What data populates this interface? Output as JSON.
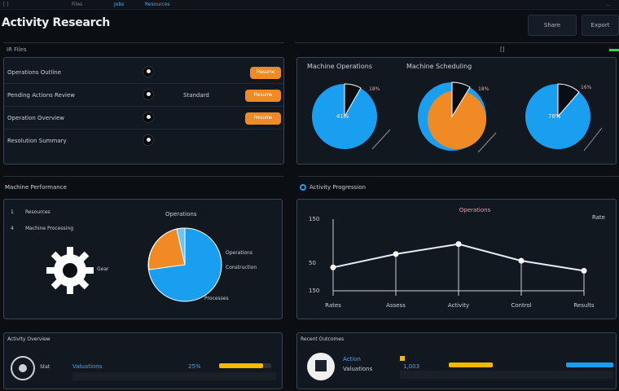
{
  "topbar": {
    "tabs": [
      {
        "label": "[ ]",
        "active": false
      },
      {
        "label": "Files",
        "active": false
      },
      {
        "label": "Jobs",
        "active": true
      },
      {
        "label": "Resources",
        "active": true
      }
    ],
    "right_label": "..."
  },
  "header": {
    "title": "Activity Research",
    "buttons": [
      "Share",
      "Export"
    ]
  },
  "sections": {
    "top_left_label": "IR Files",
    "top_right_marker": "[]",
    "mid_left_label": "Machine Performance",
    "mid_right_label": "Activity Progression",
    "bottom_left_label": "Activity Overview",
    "bottom_right_label": "Recent Outcomes"
  },
  "list": {
    "rows": [
      {
        "label": "Operations Outline",
        "value": "",
        "button": "Resume"
      },
      {
        "label": "Pending Actions Review",
        "value": "Standard",
        "button": "Resume"
      },
      {
        "label": "Operation Overview",
        "value": "",
        "button": "Resume"
      },
      {
        "label": "Resolution Summary",
        "value": "",
        "button": ""
      }
    ]
  },
  "donuts": {
    "title_left": "Machine Operations",
    "title_right": "Machine Scheduling",
    "items": [
      {
        "center": "41%",
        "tag": "18%",
        "blue": "#1a9ff0",
        "orange": null
      },
      {
        "center": "",
        "tag": "18%",
        "blue": "#1a9ff0",
        "orange": "#f08a24"
      },
      {
        "center": "78%",
        "tag": "16%",
        "blue": "#1a9ff0",
        "orange": null
      }
    ]
  },
  "perf": {
    "legend": [
      {
        "key": "1",
        "label": "Resources"
      },
      {
        "key": "4",
        "label": "Machine Processing"
      }
    ],
    "gear_label": "Gear",
    "pie_title": "Operations",
    "pie_legend": [
      "Operations",
      "Construction"
    ],
    "pie_footer": "Processes"
  },
  "chart_data": {
    "type": "line",
    "title": "Operations",
    "right_label": "Rate",
    "x": [
      "Rates",
      "Assess",
      "Activity",
      "Control",
      "Results"
    ],
    "series": [
      {
        "name": "Activity",
        "values": [
          0.35,
          0.55,
          0.7,
          0.45,
          0.3
        ]
      }
    ],
    "y_ticks": [
      "150",
      "50",
      "150"
    ],
    "ylim": [
      0,
      1
    ],
    "grid": true
  },
  "bottom_left": {
    "item_label": "Stat",
    "item_value": "Valuations",
    "item_pct": "25%",
    "bar_color": "#f5b700",
    "bar_fill": 0.85
  },
  "bottom_right": {
    "line1": "Action",
    "line2": "Valuations",
    "item_value": "1,003",
    "bars": [
      {
        "color": "#f5b700",
        "fill": 1.0
      },
      {
        "color": "#1a9ff0",
        "fill": 1.0
      }
    ]
  },
  "colors": {
    "accent_blue": "#1a9ff0",
    "accent_orange": "#f08a24",
    "accent_green": "#34d058"
  }
}
